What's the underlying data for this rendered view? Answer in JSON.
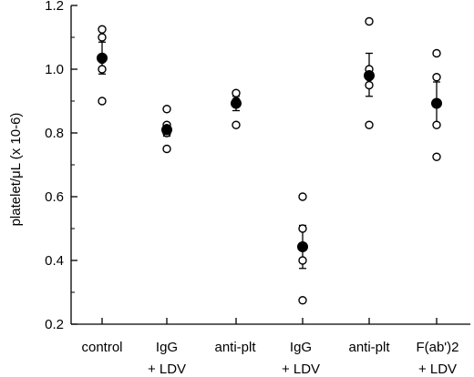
{
  "chart_data": {
    "type": "scatter",
    "ylabel": "platelet/μL (x 10-6)",
    "ylim": [
      0.2,
      1.2
    ],
    "yticks": [
      "0.2",
      "0.4",
      "0.6",
      "0.8",
      "1.0",
      "1.2"
    ],
    "ytick_values": [
      0.2,
      0.4,
      0.6,
      0.8,
      1.0,
      1.2
    ],
    "grid": false,
    "categories": [
      {
        "line1": "control",
        "line2": ""
      },
      {
        "line1": "IgG",
        "line2": "+ LDV"
      },
      {
        "line1": "anti-plt",
        "line2": ""
      },
      {
        "line1": "IgG",
        "line2": "+ LDV"
      },
      {
        "line1": "anti-plt",
        "line2": ""
      },
      {
        "line1": "F(ab')2",
        "line2": "+ LDV"
      }
    ],
    "groups": [
      {
        "points": [
          1.125,
          1.1,
          1.03,
          1.0,
          0.9
        ],
        "mean": 1.035,
        "err": [
          0.985,
          1.085
        ]
      },
      {
        "points": [
          0.875,
          0.825,
          0.815,
          0.8,
          0.75
        ],
        "mean": 0.81,
        "err": [
          0.79,
          0.83
        ]
      },
      {
        "points": [
          0.925,
          0.9,
          0.825
        ],
        "mean": 0.893,
        "err": [
          0.87,
          0.915
        ]
      },
      {
        "points": [
          0.6,
          0.5,
          0.4,
          0.275
        ],
        "mean": 0.443,
        "err": [
          0.375,
          0.51
        ]
      },
      {
        "points": [
          1.15,
          1.0,
          0.975,
          0.95,
          0.825
        ],
        "mean": 0.98,
        "err": [
          0.915,
          1.05
        ]
      },
      {
        "points": [
          1.05,
          0.975,
          0.825,
          0.725
        ],
        "mean": 0.893,
        "err": [
          0.825,
          0.96
        ]
      }
    ]
  }
}
